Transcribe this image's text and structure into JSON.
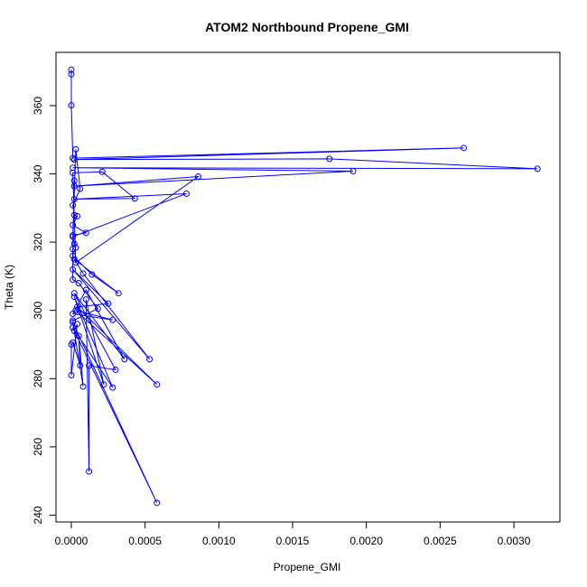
{
  "chart_data": {
    "type": "line",
    "title": "ATOM2 Northbound Propene_GMI",
    "xlabel": "Propene_GMI",
    "ylabel": "Theta (K)",
    "x": [
      0,
      0,
      0,
      1e-05,
      0.00266,
      2e-05,
      0.00175,
      0.00316,
      1e-05,
      0.00191,
      2e-05,
      0.00086,
      3e-05,
      1e-05,
      0.00021,
      0.00043,
      2e-05,
      0.00078,
      1e-05,
      3e-05,
      6e-05,
      1e-05,
      2e-05,
      4e-05,
      1e-05,
      0.0001,
      1e-05,
      2e-05,
      3e-05,
      1e-05,
      0.00014,
      0.00032,
      2e-05,
      8e-05,
      0.00053,
      1e-05,
      0.00025,
      4e-05,
      0.00058,
      3e-05,
      0.00028,
      1e-05,
      0.0001,
      0.00036,
      2e-05,
      0.0003,
      0.00012,
      0.00012,
      0.0001,
      0.00022,
      2e-05,
      0.00028,
      1e-05,
      0.00058,
      1e-05,
      8e-05,
      5e-05,
      6e-05,
      1e-05,
      0,
      0,
      4e-05,
      2e-05,
      1e-05,
      0.00018,
      5e-05,
      1e-05,
      1e-05,
      2e-05
    ],
    "series": [
      {
        "name": "Theta",
        "color": "#0000ff",
        "values": [
          370.5,
          369.2,
          360.1,
          344.6,
          347.6,
          344.2,
          344.4,
          341.5,
          341.8,
          340.8,
          336.4,
          339.2,
          314.0,
          340.3,
          340.6,
          332.8,
          332.6,
          334.2,
          321.6,
          347.2,
          335.6,
          330.8,
          327.9,
          327.6,
          325.0,
          322.7,
          322.0,
          319.5,
          318.4,
          316.0,
          310.5,
          305.0,
          315.0,
          310.8,
          285.7,
          312.0,
          302.0,
          301.0,
          278.3,
          300.0,
          297.2,
          299.0,
          306.0,
          285.7,
          305.0,
          282.6,
          283.8,
          252.8,
          303.2,
          278.3,
          304.0,
          277.4,
          295.0,
          243.6,
          296.5,
          277.7,
          292.5,
          283.9,
          290.6,
          290.0,
          281.0,
          296.0,
          294.0,
          297.0,
          300.5,
          308.0,
          309.0,
          318.0,
          338.0
        ]
      }
    ],
    "xlim": [
      -0.000104,
      0.003312
    ],
    "ylim": [
      238,
      375.6
    ],
    "xticks": [
      {
        "value": 0,
        "label": "0.0000"
      },
      {
        "value": 0.0005,
        "label": "0.0005"
      },
      {
        "value": 0.001,
        "label": "0.0010"
      },
      {
        "value": 0.0015,
        "label": "0.0015"
      },
      {
        "value": 0.002,
        "label": "0.0020"
      },
      {
        "value": 0.0025,
        "label": "0.0025"
      },
      {
        "value": 0.003,
        "label": "0.0030"
      }
    ],
    "yticks": [
      240,
      260,
      280,
      300,
      320,
      340,
      360
    ]
  }
}
